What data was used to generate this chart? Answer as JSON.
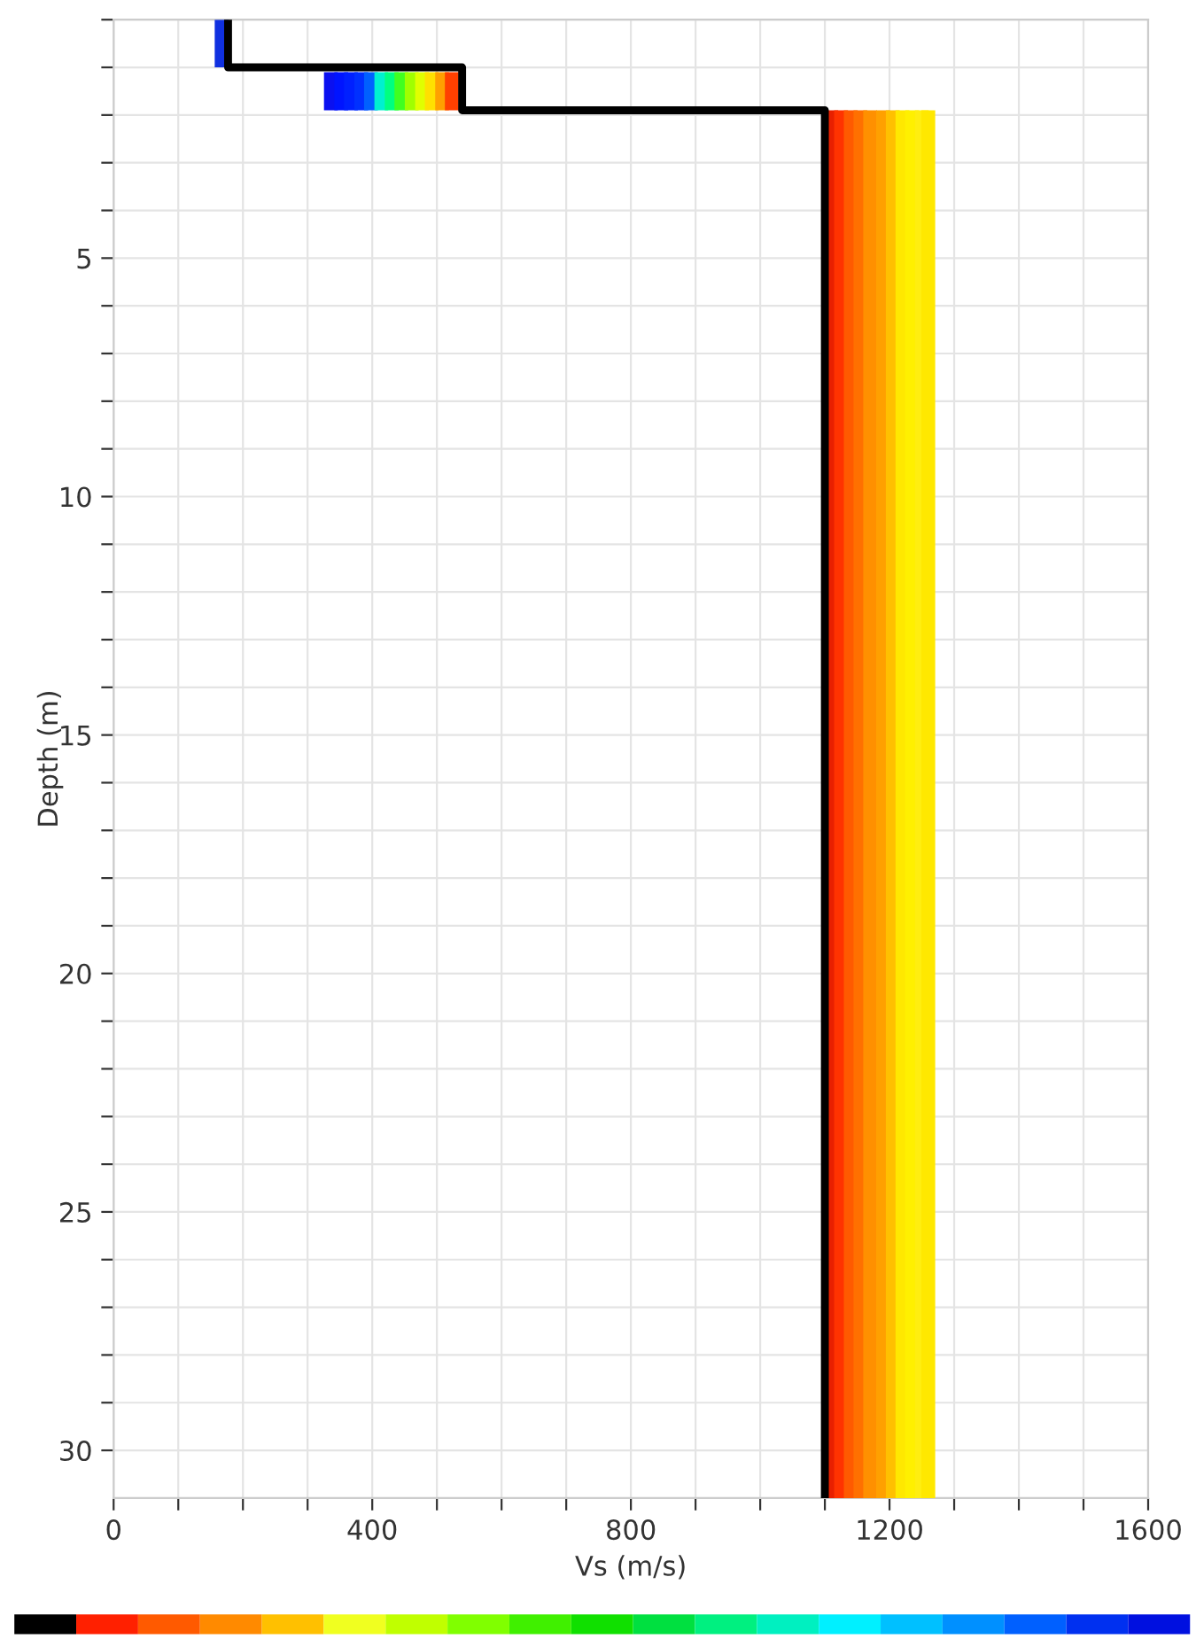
{
  "chart_data": {
    "type": "line",
    "xlabel": "Vs (m/s)",
    "ylabel": "Depth (m)",
    "xlim": [
      0,
      1600
    ],
    "ylim": [
      31,
      0
    ],
    "xticks": [
      0,
      {
        "value": 100,
        "label": null
      },
      {
        "value": 200,
        "label": null
      },
      {
        "value": 300,
        "label": null
      },
      400,
      {
        "value": 500,
        "label": null
      },
      {
        "value": 600,
        "label": null
      },
      {
        "value": 700,
        "label": null
      },
      800,
      {
        "value": 900,
        "label": null
      },
      {
        "value": 1000,
        "label": null
      },
      {
        "value": 1100,
        "label": null
      },
      1200,
      {
        "value": 1300,
        "label": null
      },
      {
        "value": 1400,
        "label": null
      },
      {
        "value": 1500,
        "label": null
      },
      1600
    ],
    "yticks": [
      {
        "value": 0,
        "label": null
      },
      {
        "value": 1,
        "label": null
      },
      {
        "value": 2,
        "label": null
      },
      {
        "value": 3,
        "label": null
      },
      {
        "value": 4,
        "label": null
      },
      5,
      {
        "value": 6,
        "label": null
      },
      {
        "value": 7,
        "label": null
      },
      {
        "value": 8,
        "label": null
      },
      {
        "value": 9,
        "label": null
      },
      10,
      {
        "value": 11,
        "label": null
      },
      {
        "value": 12,
        "label": null
      },
      {
        "value": 13,
        "label": null
      },
      {
        "value": 14,
        "label": null
      },
      15,
      {
        "value": 16,
        "label": null
      },
      {
        "value": 17,
        "label": null
      },
      {
        "value": 18,
        "label": null
      },
      {
        "value": 19,
        "label": null
      },
      20,
      {
        "value": 21,
        "label": null
      },
      {
        "value": 22,
        "label": null
      },
      {
        "value": 23,
        "label": null
      },
      {
        "value": 24,
        "label": null
      },
      25,
      {
        "value": 26,
        "label": null
      },
      {
        "value": 27,
        "label": null
      },
      {
        "value": 28,
        "label": null
      },
      {
        "value": 29,
        "label": null
      },
      30
    ],
    "grid": true,
    "marker": "none",
    "line_style": "solid",
    "series": [
      {
        "color": "#1030e0",
        "x": [
          167,
          167
        ],
        "values": [
          0,
          1.0
        ]
      },
      {
        "color": "#0a10f0",
        "x": [
          336,
          336
        ],
        "values": [
          1.1,
          1.9
        ]
      },
      {
        "color": "#0014ff",
        "x": [
          352,
          352
        ],
        "values": [
          1.1,
          1.9
        ]
      },
      {
        "color": "#0020ff",
        "x": [
          367,
          367
        ],
        "values": [
          1.1,
          1.9
        ]
      },
      {
        "color": "#0030ff",
        "x": [
          383,
          383
        ],
        "values": [
          1.1,
          1.9
        ]
      },
      {
        "color": "#0060ff",
        "x": [
          398,
          398
        ],
        "values": [
          1.1,
          1.9
        ]
      },
      {
        "color": "#00f0d0",
        "x": [
          414,
          414
        ],
        "values": [
          1.1,
          1.9
        ]
      },
      {
        "color": "#00ff80",
        "x": [
          430,
          430
        ],
        "values": [
          1.1,
          1.9
        ]
      },
      {
        "color": "#40ff20",
        "x": [
          445,
          445
        ],
        "values": [
          1.1,
          1.9
        ]
      },
      {
        "color": "#a0ff00",
        "x": [
          461,
          461
        ],
        "values": [
          1.1,
          1.9
        ]
      },
      {
        "color": "#e0ff00",
        "x": [
          477,
          477
        ],
        "values": [
          1.1,
          1.9
        ]
      },
      {
        "color": "#ffe000",
        "x": [
          492,
          492
        ],
        "values": [
          1.1,
          1.9
        ]
      },
      {
        "color": "#ffa000",
        "x": [
          508,
          508
        ],
        "values": [
          1.1,
          1.9
        ]
      },
      {
        "color": "#ff4000",
        "x": [
          523,
          523
        ],
        "values": [
          1.1,
          1.9
        ]
      },
      {
        "color": "#e82000",
        "x": [
          1110,
          1110
        ],
        "values": [
          1.9,
          31
        ]
      },
      {
        "color": "#ff3300",
        "x": [
          1125,
          1125
        ],
        "values": [
          1.9,
          31
        ]
      },
      {
        "color": "#ff5a00",
        "x": [
          1140,
          1140
        ],
        "values": [
          1.9,
          31
        ]
      },
      {
        "color": "#ff7000",
        "x": [
          1155,
          1155
        ],
        "values": [
          1.9,
          31
        ]
      },
      {
        "color": "#ff9000",
        "x": [
          1170,
          1170
        ],
        "values": [
          1.9,
          31
        ]
      },
      {
        "color": "#ffa000",
        "x": [
          1190,
          1190
        ],
        "values": [
          1.9,
          31
        ]
      },
      {
        "color": "#ffc000",
        "x": [
          1205,
          1205
        ],
        "values": [
          1.9,
          31
        ]
      },
      {
        "color": "#ffe800",
        "x": [
          1220,
          1220
        ],
        "values": [
          1.9,
          31
        ]
      },
      {
        "color": "#fff000",
        "x": [
          1235,
          1235
        ],
        "values": [
          1.9,
          31
        ]
      },
      {
        "color": "#ffee10",
        "x": [
          1250,
          1250
        ],
        "values": [
          1.9,
          31
        ]
      },
      {
        "color": "#ffe800",
        "x": [
          1260,
          1260
        ],
        "values": [
          1.9,
          31
        ]
      },
      {
        "color": "#000000",
        "x": [
          177,
          177,
          539,
          539,
          1100,
          1100
        ],
        "values": [
          0,
          1.0,
          1.0,
          1.9,
          1.9,
          31
        ]
      }
    ]
  }
}
